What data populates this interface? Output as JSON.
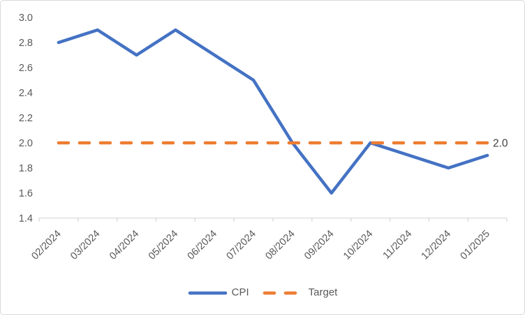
{
  "chart_data": {
    "type": "line",
    "title": "",
    "xlabel": "",
    "ylabel": "",
    "categories": [
      "02/2024",
      "03/2024",
      "04/2024",
      "05/2024",
      "06/2024",
      "07/2024",
      "08/2024",
      "09/2024",
      "10/2024",
      "11/2024",
      "12/2024",
      "01/2025"
    ],
    "series": [
      {
        "name": "CPI",
        "values": [
          2.8,
          2.9,
          2.7,
          2.9,
          2.7,
          2.5,
          2.0,
          1.6,
          2.0,
          1.9,
          1.8,
          1.9
        ],
        "color": "#4472C4",
        "line_style": "solid"
      },
      {
        "name": "Target",
        "values": [
          2.0,
          2.0,
          2.0,
          2.0,
          2.0,
          2.0,
          2.0,
          2.0,
          2.0,
          2.0,
          2.0,
          2.0
        ],
        "color": "#ED7D31",
        "line_style": "dashed"
      }
    ],
    "ylim": [
      1.4,
      3.0
    ],
    "y_tick_step": 0.2,
    "y_tick_labels": [
      "3.0",
      "2.8",
      "2.6",
      "2.4",
      "2.2",
      "2.0",
      "1.8",
      "1.6",
      "1.4"
    ],
    "grid": "off",
    "legend_position": "bottom",
    "annotation": {
      "text": "2.0"
    },
    "colors": {
      "cpi_blue": "#4472C4",
      "target_orange": "#ED7D31",
      "axis_gray": "#D9D9D9",
      "tick_text": "#595959",
      "annotation_text": "#404040"
    }
  }
}
